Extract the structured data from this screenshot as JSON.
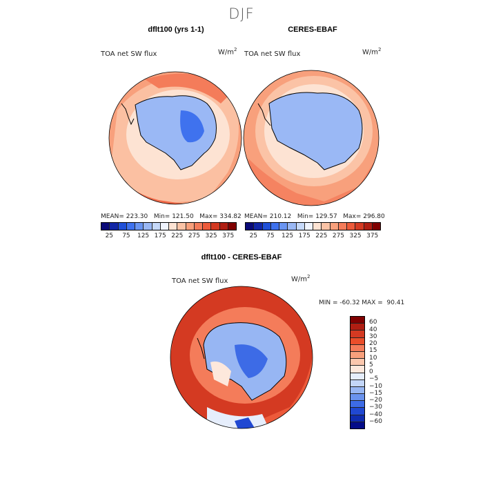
{
  "figure": {
    "title": "DJF"
  },
  "panels": {
    "model": {
      "title": "dflt100 (yrs 1-1)",
      "variable": "TOA net SW flux",
      "units": "W/m",
      "units_exp": "2",
      "stats": "MEAN= 223.30   Min= 121.50   Max= 334.82"
    },
    "obs": {
      "title": "CERES-EBAF",
      "variable": "TOA net SW flux",
      "units": "W/m",
      "units_exp": "2",
      "stats": "MEAN= 210.12   Min= 129.57   Max= 296.80"
    },
    "diff": {
      "title": "dflt100 - CERES-EBAF",
      "variable": "TOA net SW flux",
      "units": "W/m",
      "units_exp": "2",
      "stats": "MIN = -60.32 MAX =  90.41"
    }
  },
  "colorbar_abs": {
    "colors": [
      "#0a0a78",
      "#1226a6",
      "#2050d8",
      "#3f72ee",
      "#6a95f2",
      "#9ab8f5",
      "#c6d9fa",
      "#f0f4fe",
      "#fde3d3",
      "#fbc3a6",
      "#f8a07c",
      "#f47c5a",
      "#ed5a3a",
      "#d43a22",
      "#b01e12",
      "#800000"
    ],
    "labels": [
      "25",
      "75",
      "125",
      "175",
      "225",
      "275",
      "325",
      "375"
    ]
  },
  "colorbar_diff": {
    "colors": [
      "#800000",
      "#b01e12",
      "#d43a22",
      "#ea4e2a",
      "#f47c5a",
      "#f8a07c",
      "#fbc7ad",
      "#fde8dc",
      "#e6eefc",
      "#c3d6f8",
      "#97b6f3",
      "#6a93ee",
      "#3d6be6",
      "#2048d2",
      "#0f2cb0",
      "#040c88"
    ],
    "labels": [
      "60",
      "40",
      "30",
      "20",
      "15",
      "10",
      "5",
      "0",
      "−5",
      "−10",
      "−15",
      "−20",
      "−30",
      "−40",
      "−60"
    ]
  }
}
